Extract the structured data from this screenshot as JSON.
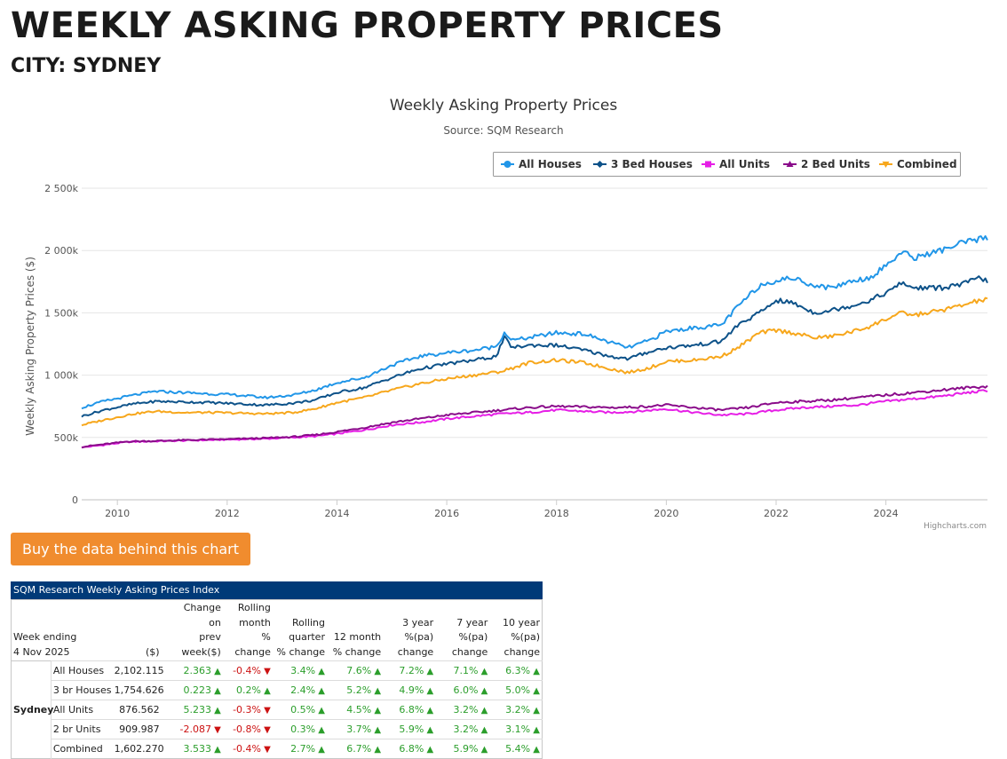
{
  "page": {
    "title": "WEEKLY ASKING PROPERTY PRICES",
    "subtitle": "CITY: SYDNEY",
    "buy_button": "Buy the data behind this chart",
    "credits": "Highcharts.com"
  },
  "colors": {
    "all_houses": "#2196e8",
    "bed3_houses": "#0d5289",
    "all_units": "#e61ee6",
    "bed2_units": "#8a0b8a",
    "combined": "#f7a71c",
    "button": "#f08c2e",
    "table_header": "#003a78",
    "up": "#2b9e2b",
    "down": "#cc1111"
  },
  "chart_data": {
    "type": "line",
    "title": "Weekly Asking Property Prices",
    "subtitle": "Source: SQM Research",
    "xlabel": "",
    "ylabel": "Weekly Asking Property Prices ($)",
    "xlim": [
      2009.35,
      2025.85
    ],
    "ylim": [
      0,
      2500000
    ],
    "x_ticks": [
      2010,
      2012,
      2014,
      2016,
      2018,
      2020,
      2022,
      2024
    ],
    "y_ticks": [
      0,
      500000,
      1000000,
      1500000,
      2000000,
      2500000
    ],
    "y_tick_labels": [
      "0",
      "500k",
      "1 000k",
      "1 500k",
      "2 000k",
      "2 500k"
    ],
    "grid": true,
    "legend_position": "top-right",
    "series": [
      {
        "name": "All Houses",
        "key": "all_houses",
        "points": [
          [
            2009.35,
            740000
          ],
          [
            2009.75,
            790000
          ],
          [
            2010.3,
            840000
          ],
          [
            2010.7,
            870000
          ],
          [
            2011.2,
            860000
          ],
          [
            2011.7,
            850000
          ],
          [
            2012.2,
            840000
          ],
          [
            2012.7,
            820000
          ],
          [
            2013.2,
            840000
          ],
          [
            2013.6,
            880000
          ],
          [
            2014.0,
            940000
          ],
          [
            2014.5,
            980000
          ],
          [
            2015.0,
            1080000
          ],
          [
            2015.5,
            1150000
          ],
          [
            2016.0,
            1180000
          ],
          [
            2016.5,
            1200000
          ],
          [
            2016.9,
            1230000
          ],
          [
            2017.05,
            1340000
          ],
          [
            2017.2,
            1280000
          ],
          [
            2017.5,
            1300000
          ],
          [
            2018.0,
            1340000
          ],
          [
            2018.5,
            1330000
          ],
          [
            2019.0,
            1260000
          ],
          [
            2019.3,
            1220000
          ],
          [
            2019.7,
            1280000
          ],
          [
            2020.0,
            1350000
          ],
          [
            2020.5,
            1380000
          ],
          [
            2021.0,
            1400000
          ],
          [
            2021.3,
            1550000
          ],
          [
            2021.7,
            1720000
          ],
          [
            2022.0,
            1760000
          ],
          [
            2022.3,
            1780000
          ],
          [
            2022.7,
            1720000
          ],
          [
            2023.0,
            1700000
          ],
          [
            2023.4,
            1760000
          ],
          [
            2023.7,
            1780000
          ],
          [
            2024.0,
            1880000
          ],
          [
            2024.3,
            1990000
          ],
          [
            2024.5,
            1940000
          ],
          [
            2025.0,
            2000000
          ],
          [
            2025.4,
            2060000
          ],
          [
            2025.7,
            2090000
          ],
          [
            2025.85,
            2102115
          ]
        ]
      },
      {
        "name": "3 Bed Houses",
        "key": "bed3_houses",
        "points": [
          [
            2009.35,
            670000
          ],
          [
            2009.75,
            720000
          ],
          [
            2010.3,
            770000
          ],
          [
            2010.7,
            790000
          ],
          [
            2011.2,
            785000
          ],
          [
            2011.7,
            780000
          ],
          [
            2012.2,
            770000
          ],
          [
            2012.7,
            760000
          ],
          [
            2013.2,
            775000
          ],
          [
            2013.6,
            800000
          ],
          [
            2014.0,
            860000
          ],
          [
            2014.5,
            900000
          ],
          [
            2015.0,
            980000
          ],
          [
            2015.5,
            1050000
          ],
          [
            2016.0,
            1090000
          ],
          [
            2016.5,
            1120000
          ],
          [
            2016.9,
            1150000
          ],
          [
            2017.05,
            1300000
          ],
          [
            2017.2,
            1220000
          ],
          [
            2017.5,
            1240000
          ],
          [
            2018.0,
            1240000
          ],
          [
            2018.5,
            1200000
          ],
          [
            2019.0,
            1150000
          ],
          [
            2019.3,
            1130000
          ],
          [
            2019.7,
            1190000
          ],
          [
            2020.0,
            1220000
          ],
          [
            2020.5,
            1240000
          ],
          [
            2021.0,
            1270000
          ],
          [
            2021.3,
            1400000
          ],
          [
            2021.7,
            1500000
          ],
          [
            2022.0,
            1600000
          ],
          [
            2022.3,
            1580000
          ],
          [
            2022.7,
            1500000
          ],
          [
            2023.0,
            1520000
          ],
          [
            2023.4,
            1560000
          ],
          [
            2023.7,
            1600000
          ],
          [
            2024.0,
            1660000
          ],
          [
            2024.3,
            1740000
          ],
          [
            2024.5,
            1700000
          ],
          [
            2025.0,
            1700000
          ],
          [
            2025.4,
            1730000
          ],
          [
            2025.7,
            1780000
          ],
          [
            2025.85,
            1754626
          ]
        ]
      },
      {
        "name": "All Units",
        "key": "all_units",
        "points": [
          [
            2009.35,
            420000
          ],
          [
            2009.75,
            440000
          ],
          [
            2010.2,
            465000
          ],
          [
            2010.7,
            470000
          ],
          [
            2011.2,
            475000
          ],
          [
            2011.7,
            480000
          ],
          [
            2012.2,
            485000
          ],
          [
            2012.7,
            490000
          ],
          [
            2013.2,
            500000
          ],
          [
            2013.6,
            510000
          ],
          [
            2014.0,
            530000
          ],
          [
            2014.5,
            560000
          ],
          [
            2015.0,
            600000
          ],
          [
            2015.5,
            620000
          ],
          [
            2016.0,
            650000
          ],
          [
            2016.5,
            670000
          ],
          [
            2017.0,
            690000
          ],
          [
            2017.5,
            700000
          ],
          [
            2018.0,
            720000
          ],
          [
            2018.5,
            710000
          ],
          [
            2019.0,
            700000
          ],
          [
            2019.5,
            710000
          ],
          [
            2020.0,
            730000
          ],
          [
            2020.5,
            700000
          ],
          [
            2021.0,
            680000
          ],
          [
            2021.5,
            690000
          ],
          [
            2022.0,
            720000
          ],
          [
            2022.5,
            740000
          ],
          [
            2023.0,
            750000
          ],
          [
            2023.5,
            760000
          ],
          [
            2024.0,
            790000
          ],
          [
            2024.5,
            810000
          ],
          [
            2025.0,
            830000
          ],
          [
            2025.5,
            860000
          ],
          [
            2025.85,
            876562
          ]
        ]
      },
      {
        "name": "2 Bed Units",
        "key": "bed2_units",
        "points": [
          [
            2009.35,
            425000
          ],
          [
            2009.75,
            445000
          ],
          [
            2010.2,
            468000
          ],
          [
            2010.7,
            472000
          ],
          [
            2011.2,
            478000
          ],
          [
            2011.7,
            483000
          ],
          [
            2012.2,
            488000
          ],
          [
            2012.7,
            495000
          ],
          [
            2013.2,
            505000
          ],
          [
            2013.6,
            520000
          ],
          [
            2014.0,
            545000
          ],
          [
            2014.5,
            580000
          ],
          [
            2015.0,
            620000
          ],
          [
            2015.5,
            650000
          ],
          [
            2016.0,
            680000
          ],
          [
            2016.5,
            700000
          ],
          [
            2017.0,
            720000
          ],
          [
            2017.5,
            740000
          ],
          [
            2018.0,
            750000
          ],
          [
            2018.5,
            745000
          ],
          [
            2019.0,
            740000
          ],
          [
            2019.5,
            745000
          ],
          [
            2020.0,
            760000
          ],
          [
            2020.5,
            740000
          ],
          [
            2021.0,
            720000
          ],
          [
            2021.5,
            740000
          ],
          [
            2022.0,
            780000
          ],
          [
            2022.5,
            790000
          ],
          [
            2023.0,
            800000
          ],
          [
            2023.5,
            820000
          ],
          [
            2024.0,
            840000
          ],
          [
            2024.5,
            860000
          ],
          [
            2025.0,
            880000
          ],
          [
            2025.5,
            900000
          ],
          [
            2025.85,
            909987
          ]
        ]
      },
      {
        "name": "Combined",
        "key": "combined",
        "points": [
          [
            2009.35,
            600000
          ],
          [
            2009.75,
            640000
          ],
          [
            2010.3,
            690000
          ],
          [
            2010.7,
            710000
          ],
          [
            2011.2,
            700000
          ],
          [
            2011.7,
            700000
          ],
          [
            2012.2,
            695000
          ],
          [
            2012.7,
            690000
          ],
          [
            2013.2,
            700000
          ],
          [
            2013.6,
            730000
          ],
          [
            2014.0,
            780000
          ],
          [
            2014.5,
            820000
          ],
          [
            2015.0,
            880000
          ],
          [
            2015.5,
            930000
          ],
          [
            2016.0,
            970000
          ],
          [
            2016.5,
            1000000
          ],
          [
            2017.0,
            1030000
          ],
          [
            2017.5,
            1100000
          ],
          [
            2018.0,
            1120000
          ],
          [
            2018.5,
            1100000
          ],
          [
            2019.0,
            1050000
          ],
          [
            2019.3,
            1020000
          ],
          [
            2019.7,
            1060000
          ],
          [
            2020.0,
            1110000
          ],
          [
            2020.5,
            1120000
          ],
          [
            2021.0,
            1150000
          ],
          [
            2021.3,
            1220000
          ],
          [
            2021.7,
            1340000
          ],
          [
            2022.0,
            1360000
          ],
          [
            2022.3,
            1340000
          ],
          [
            2022.7,
            1300000
          ],
          [
            2023.0,
            1310000
          ],
          [
            2023.4,
            1350000
          ],
          [
            2023.7,
            1390000
          ],
          [
            2024.0,
            1450000
          ],
          [
            2024.3,
            1500000
          ],
          [
            2024.5,
            1480000
          ],
          [
            2025.0,
            1520000
          ],
          [
            2025.4,
            1560000
          ],
          [
            2025.7,
            1600000
          ],
          [
            2025.85,
            1602270
          ]
        ]
      }
    ]
  },
  "table": {
    "caption": "SQM Research Weekly Asking Prices Index",
    "headers": {
      "week": "Week ending",
      "date": "4 Nov 2025",
      "dollars": "($)",
      "change_week": [
        "Change",
        "on",
        "prev",
        "week($)"
      ],
      "rolling_month": [
        "Rolling",
        "month",
        "% change"
      ],
      "rolling_quarter": [
        "Rolling",
        "quarter",
        "% change"
      ],
      "twelve_month": [
        "12 month",
        "% change"
      ],
      "three_year": [
        "3 year",
        "%(pa)",
        "change"
      ],
      "seven_year": [
        "7 year",
        "%(pa)",
        "change"
      ],
      "ten_year": [
        "10 year",
        "%(pa)",
        "change"
      ]
    },
    "city": "Sydney",
    "rows": [
      {
        "type": "All Houses",
        "price": "2,102.115",
        "week": "2.363",
        "week_dir": "up",
        "month": "-0.4%",
        "month_dir": "down",
        "quarter": "3.4%",
        "quarter_dir": "up",
        "m12": "7.6%",
        "m12_dir": "up",
        "y3": "7.2%",
        "y3_dir": "up",
        "y7": "7.1%",
        "y7_dir": "up",
        "y10": "6.3%",
        "y10_dir": "up"
      },
      {
        "type": "3 br Houses",
        "price": "1,754.626",
        "week": "0.223",
        "week_dir": "up",
        "month": "0.2%",
        "month_dir": "up",
        "quarter": "2.4%",
        "quarter_dir": "up",
        "m12": "5.2%",
        "m12_dir": "up",
        "y3": "4.9%",
        "y3_dir": "up",
        "y7": "6.0%",
        "y7_dir": "up",
        "y10": "5.0%",
        "y10_dir": "up"
      },
      {
        "type": "All Units",
        "price": "876.562",
        "week": "5.233",
        "week_dir": "up",
        "month": "-0.3%",
        "month_dir": "down",
        "quarter": "0.5%",
        "quarter_dir": "up",
        "m12": "4.5%",
        "m12_dir": "up",
        "y3": "6.8%",
        "y3_dir": "up",
        "y7": "3.2%",
        "y7_dir": "up",
        "y10": "3.2%",
        "y10_dir": "up"
      },
      {
        "type": "2 br Units",
        "price": "909.987",
        "week": "-2.087",
        "week_dir": "down",
        "month": "-0.8%",
        "month_dir": "down",
        "quarter": "0.3%",
        "quarter_dir": "up",
        "m12": "3.7%",
        "m12_dir": "up",
        "y3": "5.9%",
        "y3_dir": "up",
        "y7": "3.2%",
        "y7_dir": "up",
        "y10": "3.1%",
        "y10_dir": "up"
      },
      {
        "type": "Combined",
        "price": "1,602.270",
        "week": "3.533",
        "week_dir": "up",
        "month": "-0.4%",
        "month_dir": "down",
        "quarter": "2.7%",
        "quarter_dir": "up",
        "m12": "6.7%",
        "m12_dir": "up",
        "y3": "6.8%",
        "y3_dir": "up",
        "y7": "5.9%",
        "y7_dir": "up",
        "y10": "5.4%",
        "y10_dir": "up"
      }
    ]
  }
}
